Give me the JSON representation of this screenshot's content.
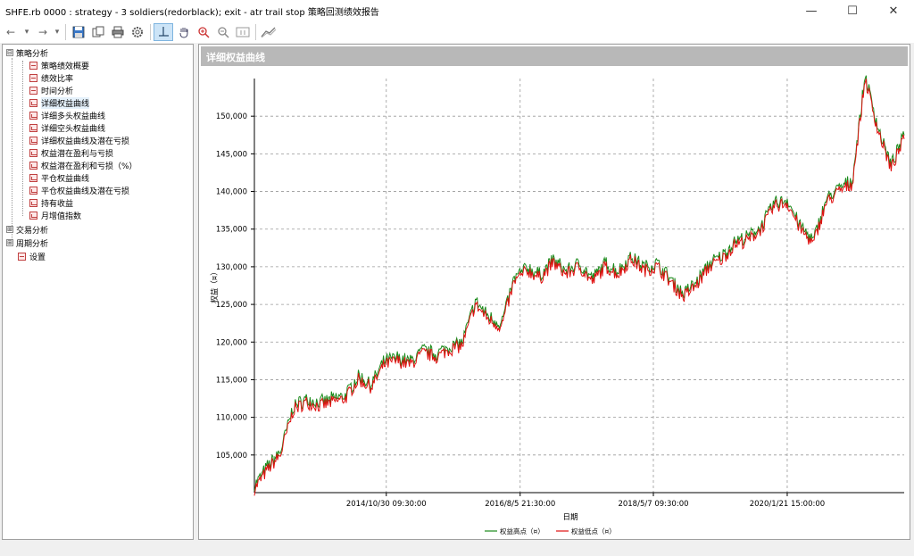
{
  "window": {
    "title": "SHFE.rb 0000 : strategy - 3 soldiers(redorblack); exit - atr trail stop 策略回测绩效报告",
    "minimize": "—",
    "maximize": "☐",
    "close": "✕"
  },
  "toolbar": {
    "back": "←",
    "forward": "→",
    "dropdown": "▾"
  },
  "sidebar": {
    "groups": [
      {
        "label": "策略分析",
        "expander": "⊟"
      },
      {
        "label": "交易分析",
        "expander": "⊞"
      },
      {
        "label": "周期分析",
        "expander": "⊞"
      },
      {
        "label": "设置"
      }
    ],
    "items": [
      {
        "label": "策略绩效概要"
      },
      {
        "label": "绩效比率"
      },
      {
        "label": "时间分析"
      },
      {
        "label": "详细权益曲线"
      },
      {
        "label": "详细多头权益曲线"
      },
      {
        "label": "详细空头权益曲线"
      },
      {
        "label": "详细权益曲线及潜在亏损"
      },
      {
        "label": "权益潜在盈利与亏损"
      },
      {
        "label": "权益潜在盈利和亏损（%）"
      },
      {
        "label": "平仓权益曲线"
      },
      {
        "label": "平仓权益曲线及潜在亏损"
      },
      {
        "label": "持有收益"
      },
      {
        "label": "月增值指数"
      }
    ]
  },
  "panel": {
    "title": "详细权益曲线"
  },
  "colors": {
    "high_series": "#1a8a1a",
    "low_series": "#e01010",
    "header_bg": "#b8b8b8"
  },
  "chart_data": {
    "type": "line",
    "title": "",
    "xlabel": "日期",
    "ylabel": "权益（¤）",
    "x_ticks": [
      "2014/10/30 09:30:00",
      "2016/8/5 21:30:00",
      "2018/5/7 09:30:00",
      "2020/1/21 15:00:00"
    ],
    "y_ticks": [
      "105,000",
      "110,000",
      "115,000",
      "120,000",
      "125,000",
      "130,000",
      "135,000",
      "140,000",
      "145,000",
      "150,000"
    ],
    "ylim": [
      100000,
      155000
    ],
    "grid": true,
    "legend_position": "bottom",
    "series": [
      {
        "name": "权益高点（¤）",
        "color": "#1a8a1a"
      },
      {
        "name": "权益低点（¤）",
        "color": "#e01010"
      }
    ],
    "x": [
      0,
      0.02,
      0.04,
      0.06,
      0.08,
      0.1,
      0.12,
      0.14,
      0.16,
      0.18,
      0.2,
      0.22,
      0.24,
      0.26,
      0.28,
      0.3,
      0.32,
      0.34,
      0.36,
      0.38,
      0.4,
      0.42,
      0.44,
      0.46,
      0.48,
      0.5,
      0.52,
      0.54,
      0.56,
      0.58,
      0.6,
      0.62,
      0.64,
      0.66,
      0.68,
      0.7,
      0.72,
      0.74,
      0.76,
      0.78,
      0.8,
      0.82,
      0.84,
      0.86,
      0.88,
      0.9,
      0.92,
      0.94,
      0.96,
      0.98,
      1.0
    ],
    "values": [
      100500,
      103000,
      105000,
      111000,
      112000,
      111500,
      112000,
      112500,
      115000,
      114000,
      117000,
      117500,
      117000,
      118500,
      118000,
      119000,
      119500,
      125000,
      123000,
      122000,
      128000,
      129500,
      128500,
      130500,
      129000,
      130000,
      128000,
      130000,
      129000,
      131000,
      129500,
      130000,
      128000,
      126000,
      127500,
      130000,
      131000,
      133000,
      133500,
      135000,
      138000,
      138500,
      135000,
      133000,
      138500,
      140000,
      141000,
      155000,
      148000,
      143000,
      147000
    ]
  }
}
